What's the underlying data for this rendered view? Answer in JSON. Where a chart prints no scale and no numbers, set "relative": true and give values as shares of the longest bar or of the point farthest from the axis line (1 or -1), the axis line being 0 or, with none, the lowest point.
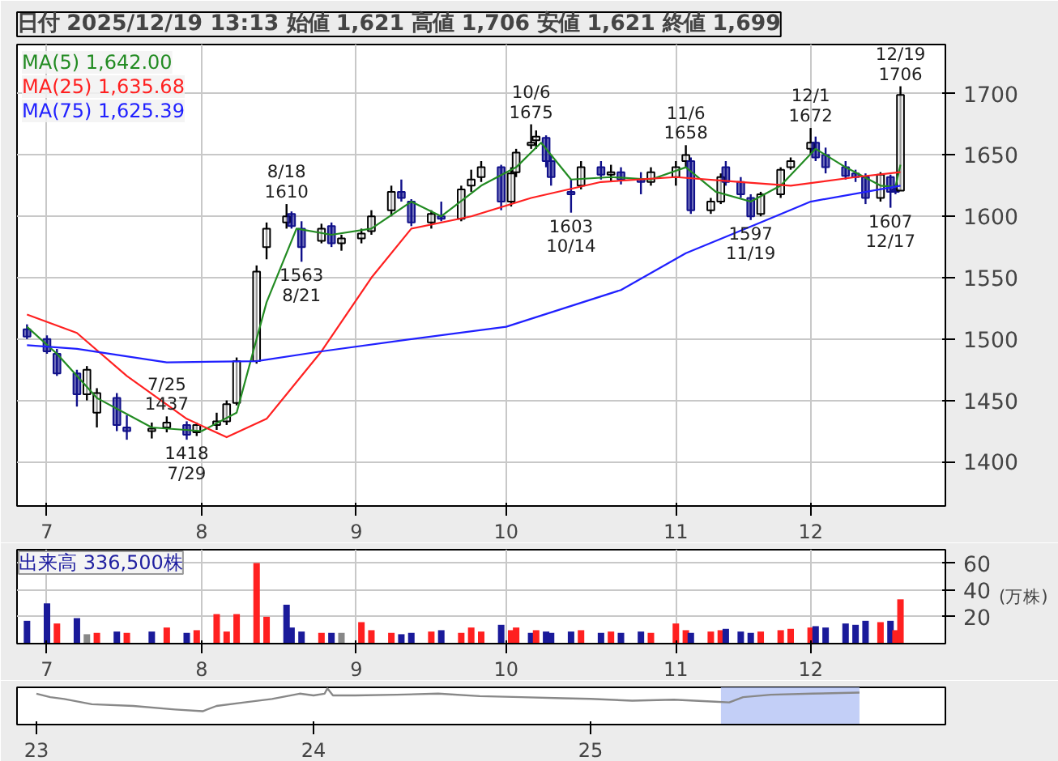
{
  "chart_data": [
    {
      "type": "candlestick",
      "title": "日付 2025/12/19 13:13 始値 1,621 高値 1,706 安値 1,621 終値 1,699",
      "x": [
        "2025-06-27",
        "2025-07-01",
        "2025-07-03",
        "2025-07-07",
        "2025-07-09",
        "2025-07-11",
        "2025-07-15",
        "2025-07-17",
        "2025-07-22",
        "2025-07-25",
        "2025-07-29",
        "2025-07-31",
        "2025-08-04",
        "2025-08-06",
        "2025-08-08",
        "2025-08-12",
        "2025-08-14",
        "2025-08-18",
        "2025-08-19",
        "2025-08-21",
        "2025-08-25",
        "2025-08-27",
        "2025-08-29",
        "2025-09-02",
        "2025-09-04",
        "2025-09-08",
        "2025-09-10",
        "2025-09-12",
        "2025-09-16",
        "2025-09-18",
        "2025-09-22",
        "2025-09-24",
        "2025-09-26",
        "2025-09-30",
        "2025-10-02",
        "2025-10-03",
        "2025-10-06",
        "2025-10-07",
        "2025-10-09",
        "2025-10-10",
        "2025-10-14",
        "2025-10-16",
        "2025-10-20",
        "2025-10-22",
        "2025-10-24",
        "2025-10-28",
        "2025-10-30",
        "2025-11-04",
        "2025-11-06",
        "2025-11-07",
        "2025-11-11",
        "2025-11-13",
        "2025-11-14",
        "2025-11-17",
        "2025-11-19",
        "2025-11-21",
        "2025-11-25",
        "2025-11-27",
        "2025-12-01",
        "2025-12-02",
        "2025-12-04",
        "2025-12-08",
        "2025-12-10",
        "2025-12-12",
        "2025-12-15",
        "2025-12-17",
        "2025-12-18",
        "2025-12-19"
      ],
      "ohlc": [
        [
          1508,
          1512,
          1500,
          1502
        ],
        [
          1500,
          1503,
          1488,
          1490
        ],
        [
          1488,
          1492,
          1470,
          1472
        ],
        [
          1472,
          1475,
          1445,
          1455
        ],
        [
          1455,
          1478,
          1450,
          1475
        ],
        [
          1440,
          1460,
          1428,
          1456
        ],
        [
          1452,
          1456,
          1425,
          1430
        ],
        [
          1428,
          1438,
          1418,
          1425
        ],
        [
          1425,
          1432,
          1419,
          1427
        ],
        [
          1428,
          1437,
          1424,
          1432
        ],
        [
          1430,
          1433,
          1418,
          1422
        ],
        [
          1424,
          1432,
          1421,
          1430
        ],
        [
          1430,
          1440,
          1426,
          1433
        ],
        [
          1433,
          1450,
          1430,
          1447
        ],
        [
          1448,
          1485,
          1446,
          1482
        ],
        [
          1482,
          1560,
          1480,
          1555
        ],
        [
          1575,
          1595,
          1565,
          1590
        ],
        [
          1595,
          1610,
          1590,
          1600
        ],
        [
          1602,
          1604,
          1590,
          1592
        ],
        [
          1590,
          1596,
          1563,
          1575
        ],
        [
          1580,
          1594,
          1578,
          1590
        ],
        [
          1592,
          1595,
          1575,
          1578
        ],
        [
          1578,
          1585,
          1572,
          1582
        ],
        [
          1582,
          1590,
          1578,
          1586
        ],
        [
          1588,
          1605,
          1585,
          1600
        ],
        [
          1605,
          1625,
          1600,
          1620
        ],
        [
          1620,
          1630,
          1612,
          1615
        ],
        [
          1612,
          1614,
          1592,
          1595
        ],
        [
          1595,
          1605,
          1590,
          1602
        ],
        [
          1600,
          1612,
          1596,
          1598
        ],
        [
          1598,
          1625,
          1596,
          1622
        ],
        [
          1625,
          1638,
          1620,
          1630
        ],
        [
          1632,
          1645,
          1628,
          1640
        ],
        [
          1640,
          1642,
          1605,
          1612
        ],
        [
          1612,
          1640,
          1608,
          1635
        ],
        [
          1636,
          1655,
          1632,
          1652
        ],
        [
          1658,
          1675,
          1655,
          1660
        ],
        [
          1662,
          1670,
          1655,
          1665
        ],
        [
          1664,
          1666,
          1640,
          1645
        ],
        [
          1645,
          1650,
          1625,
          1632
        ],
        [
          1620,
          1630,
          1603,
          1618
        ],
        [
          1625,
          1645,
          1622,
          1640
        ],
        [
          1640,
          1645,
          1630,
          1634
        ],
        [
          1634,
          1642,
          1628,
          1636
        ],
        [
          1636,
          1640,
          1626,
          1630
        ],
        [
          1630,
          1636,
          1618,
          1628
        ],
        [
          1628,
          1640,
          1625,
          1636
        ],
        [
          1632,
          1645,
          1625,
          1640
        ],
        [
          1645,
          1658,
          1640,
          1650
        ],
        [
          1645,
          1648,
          1602,
          1605
        ],
        [
          1605,
          1615,
          1602,
          1612
        ],
        [
          1612,
          1635,
          1610,
          1632
        ],
        [
          1640,
          1645,
          1625,
          1628
        ],
        [
          1628,
          1632,
          1615,
          1618
        ],
        [
          1615,
          1618,
          1597,
          1600
        ],
        [
          1602,
          1620,
          1600,
          1618
        ],
        [
          1618,
          1640,
          1615,
          1638
        ],
        [
          1640,
          1648,
          1638,
          1645
        ],
        [
          1655,
          1672,
          1650,
          1660
        ],
        [
          1660,
          1665,
          1645,
          1648
        ],
        [
          1650,
          1656,
          1635,
          1640
        ],
        [
          1640,
          1645,
          1630,
          1633
        ],
        [
          1635,
          1638,
          1628,
          1632
        ],
        [
          1632,
          1635,
          1610,
          1615
        ],
        [
          1615,
          1636,
          1612,
          1634
        ],
        [
          1632,
          1634,
          1607,
          1620
        ],
        [
          1622,
          1626,
          1618,
          1620
        ],
        [
          1621,
          1706,
          1621,
          1699
        ]
      ],
      "series": [
        {
          "type": "line",
          "name": "MA(5) 1,642.00",
          "color": "#228b22",
          "x": [
            "2025-06-27",
            "2025-07-03",
            "2025-07-11",
            "2025-07-22",
            "2025-08-01",
            "2025-08-08",
            "2025-08-14",
            "2025-08-20",
            "2025-08-27",
            "2025-09-04",
            "2025-09-12",
            "2025-09-18",
            "2025-09-26",
            "2025-10-03",
            "2025-10-08",
            "2025-10-14",
            "2025-10-22",
            "2025-10-30",
            "2025-11-06",
            "2025-11-12",
            "2025-11-19",
            "2025-11-25",
            "2025-12-02",
            "2025-12-08",
            "2025-12-15",
            "2025-12-18",
            "2025-12-19"
          ],
          "values": [
            1510,
            1488,
            1452,
            1428,
            1425,
            1440,
            1530,
            1590,
            1585,
            1590,
            1612,
            1600,
            1625,
            1640,
            1660,
            1630,
            1632,
            1630,
            1640,
            1620,
            1612,
            1625,
            1655,
            1640,
            1625,
            1624,
            1642
          ]
        },
        {
          "type": "line",
          "name": "MA(25) 1,635.68",
          "color": "#ff2020",
          "x": [
            "2025-06-27",
            "2025-07-07",
            "2025-07-17",
            "2025-07-29",
            "2025-08-06",
            "2025-08-14",
            "2025-08-25",
            "2025-09-04",
            "2025-09-12",
            "2025-09-24",
            "2025-10-06",
            "2025-10-20",
            "2025-11-04",
            "2025-11-17",
            "2025-11-27",
            "2025-12-10",
            "2025-12-19"
          ],
          "values": [
            1520,
            1505,
            1470,
            1435,
            1420,
            1435,
            1490,
            1550,
            1590,
            1600,
            1615,
            1628,
            1632,
            1628,
            1625,
            1632,
            1636
          ]
        },
        {
          "type": "line",
          "name": "MA(75) 1,625.39",
          "color": "#2020ff",
          "x": [
            "2025-06-27",
            "2025-07-07",
            "2025-07-25",
            "2025-08-12",
            "2025-08-25",
            "2025-09-12",
            "2025-10-01",
            "2025-10-24",
            "2025-11-06",
            "2025-11-21",
            "2025-12-01",
            "2025-12-19"
          ],
          "values": [
            1495,
            1492,
            1481,
            1482,
            1490,
            1500,
            1510,
            1540,
            1570,
            1595,
            1612,
            1625
          ]
        }
      ],
      "xlim": [
        "2025-06-25",
        "2025-12-28"
      ],
      "xticks": [
        {
          "value": "2025-07-01",
          "label": "7"
        },
        {
          "value": "2025-08-01",
          "label": "8"
        },
        {
          "value": "2025-09-01",
          "label": "9"
        },
        {
          "value": "2025-10-01",
          "label": "10"
        },
        {
          "value": "2025-11-04",
          "label": "11"
        },
        {
          "value": "2025-12-01",
          "label": "12"
        }
      ],
      "ylim": [
        1364,
        1740
      ],
      "yticks": [
        1400,
        1450,
        1500,
        1550,
        1600,
        1650,
        1700
      ],
      "grid": true,
      "legend": "top left",
      "annotations": [
        {
          "text": "7/25\n1437",
          "x": "2025-07-25",
          "y": 1437
        },
        {
          "text": "1418\n7/29",
          "x": "2025-07-29",
          "y": 1418
        },
        {
          "text": "8/18\n1610",
          "x": "2025-08-18",
          "y": 1610
        },
        {
          "text": "1563\n8/21",
          "x": "2025-08-21",
          "y": 1563
        },
        {
          "text": "10/6\n1675",
          "x": "2025-10-06",
          "y": 1675
        },
        {
          "text": "1603\n10/14",
          "x": "2025-10-14",
          "y": 1603
        },
        {
          "text": "11/6\n1658",
          "x": "2025-11-06",
          "y": 1658
        },
        {
          "text": "1597\n11/19",
          "x": "2025-11-19",
          "y": 1597
        },
        {
          "text": "12/1\n1672",
          "x": "2025-12-01",
          "y": 1672
        },
        {
          "text": "1607\n12/17",
          "x": "2025-12-17",
          "y": 1607
        },
        {
          "text": "12/19\n1706",
          "x": "2025-12-19",
          "y": 1706
        }
      ]
    },
    {
      "type": "bar",
      "title": "出来高 336,500株",
      "ylabel": "(万株)",
      "x": [
        "2025-06-27",
        "2025-07-01",
        "2025-07-03",
        "2025-07-07",
        "2025-07-09",
        "2025-07-11",
        "2025-07-15",
        "2025-07-17",
        "2025-07-22",
        "2025-07-25",
        "2025-07-29",
        "2025-07-31",
        "2025-08-04",
        "2025-08-06",
        "2025-08-08",
        "2025-08-12",
        "2025-08-14",
        "2025-08-18",
        "2025-08-19",
        "2025-08-21",
        "2025-08-25",
        "2025-08-27",
        "2025-08-29",
        "2025-09-02",
        "2025-09-04",
        "2025-09-08",
        "2025-09-10",
        "2025-09-12",
        "2025-09-16",
        "2025-09-18",
        "2025-09-22",
        "2025-09-24",
        "2025-09-26",
        "2025-09-30",
        "2025-10-02",
        "2025-10-03",
        "2025-10-06",
        "2025-10-07",
        "2025-10-09",
        "2025-10-10",
        "2025-10-14",
        "2025-10-16",
        "2025-10-20",
        "2025-10-22",
        "2025-10-24",
        "2025-10-28",
        "2025-10-30",
        "2025-11-04",
        "2025-11-06",
        "2025-11-07",
        "2025-11-11",
        "2025-11-13",
        "2025-11-14",
        "2025-11-17",
        "2025-11-19",
        "2025-11-21",
        "2025-11-25",
        "2025-11-27",
        "2025-12-01",
        "2025-12-02",
        "2025-12-04",
        "2025-12-08",
        "2025-12-10",
        "2025-12-12",
        "2025-12-15",
        "2025-12-17",
        "2025-12-18",
        "2025-12-19"
      ],
      "values": [
        17,
        30,
        15,
        19,
        7,
        8,
        9,
        8,
        9,
        12,
        8,
        10,
        22,
        9,
        22,
        60,
        20,
        29,
        12,
        9,
        8,
        8,
        8,
        16,
        10,
        8,
        7,
        8,
        9,
        10,
        8,
        12,
        9,
        14,
        10,
        12,
        8,
        10,
        9,
        8,
        9,
        10,
        8,
        9,
        8,
        9,
        8,
        15,
        10,
        8,
        9,
        10,
        11,
        9,
        8,
        9,
        10,
        11,
        12,
        13,
        12,
        15,
        14,
        17,
        16,
        17,
        10,
        33
      ],
      "colors": [
        "#1a1a9a",
        "#1a1a9a",
        "#ff2020",
        "#1a1a9a",
        "#888888",
        "#ff2020",
        "#1a1a9a",
        "#ff2020",
        "#1a1a9a",
        "#ff2020",
        "#1a1a9a",
        "#ff2020",
        "#ff2020",
        "#ff2020",
        "#ff2020",
        "#ff2020",
        "#ff2020",
        "#1a1a9a",
        "#1a1a9a",
        "#1a1a9a",
        "#ff2020",
        "#1a1a9a",
        "#888888",
        "#ff2020",
        "#ff2020",
        "#ff2020",
        "#1a1a9a",
        "#1a1a9a",
        "#ff2020",
        "#1a1a9a",
        "#ff2020",
        "#ff2020",
        "#ff2020",
        "#1a1a9a",
        "#ff2020",
        "#ff2020",
        "#1a1a9a",
        "#ff2020",
        "#1a1a9a",
        "#1a1a9a",
        "#1a1a9a",
        "#ff2020",
        "#1a1a9a",
        "#ff2020",
        "#1a1a9a",
        "#1a1a9a",
        "#ff2020",
        "#ff2020",
        "#ff2020",
        "#1a1a9a",
        "#ff2020",
        "#ff2020",
        "#1a1a9a",
        "#1a1a9a",
        "#1a1a9a",
        "#ff2020",
        "#ff2020",
        "#ff2020",
        "#ff2020",
        "#1a1a9a",
        "#1a1a9a",
        "#1a1a9a",
        "#1a1a9a",
        "#1a1a9a",
        "#ff2020",
        "#1a1a9a",
        "#ff2020",
        "#ff2020"
      ],
      "xlim": [
        "2025-06-25",
        "2025-12-28"
      ],
      "xticks": [
        {
          "value": "2025-07-01",
          "label": "7"
        },
        {
          "value": "2025-08-01",
          "label": "8"
        },
        {
          "value": "2025-09-01",
          "label": "9"
        },
        {
          "value": "2025-10-01",
          "label": "10"
        },
        {
          "value": "2025-11-04",
          "label": "11"
        },
        {
          "value": "2025-12-01",
          "label": "12"
        }
      ],
      "ylim": [
        0,
        70
      ],
      "yticks": [
        20,
        40,
        60
      ],
      "grid": true
    },
    {
      "type": "line",
      "relative": true,
      "color": "#888888",
      "tick_labels": "x",
      "x": [
        2023.0,
        2023.05,
        2023.1,
        2023.2,
        2023.35,
        2023.5,
        2023.6,
        2023.65,
        2023.75,
        2023.85,
        2023.95,
        2024.0,
        2024.04,
        2024.05,
        2024.07,
        2024.15,
        2024.3,
        2024.45,
        2024.6,
        2024.75,
        2024.9,
        2025.0,
        2025.15,
        2025.3,
        2025.45,
        2025.5,
        2025.55,
        2025.65,
        2025.8,
        2025.97
      ],
      "values": [
        0.85,
        0.75,
        0.7,
        0.55,
        0.5,
        0.4,
        0.35,
        0.5,
        0.6,
        0.7,
        0.85,
        0.8,
        0.85,
        1.0,
        0.8,
        0.8,
        0.82,
        0.85,
        0.78,
        0.75,
        0.72,
        0.7,
        0.65,
        0.68,
        0.62,
        0.6,
        0.75,
        0.82,
        0.85,
        0.88
      ],
      "xlim": [
        2022.93,
        2026.28
      ],
      "xticks": [
        {
          "value": 2023.0,
          "label": "23"
        },
        {
          "value": 2024.0,
          "label": "24"
        },
        {
          "value": 2025.0,
          "label": "25"
        }
      ],
      "bands": [
        {
          "axis": "x",
          "from": 2025.47,
          "to": 2025.97,
          "color": "#b4c3f5"
        }
      ]
    }
  ]
}
